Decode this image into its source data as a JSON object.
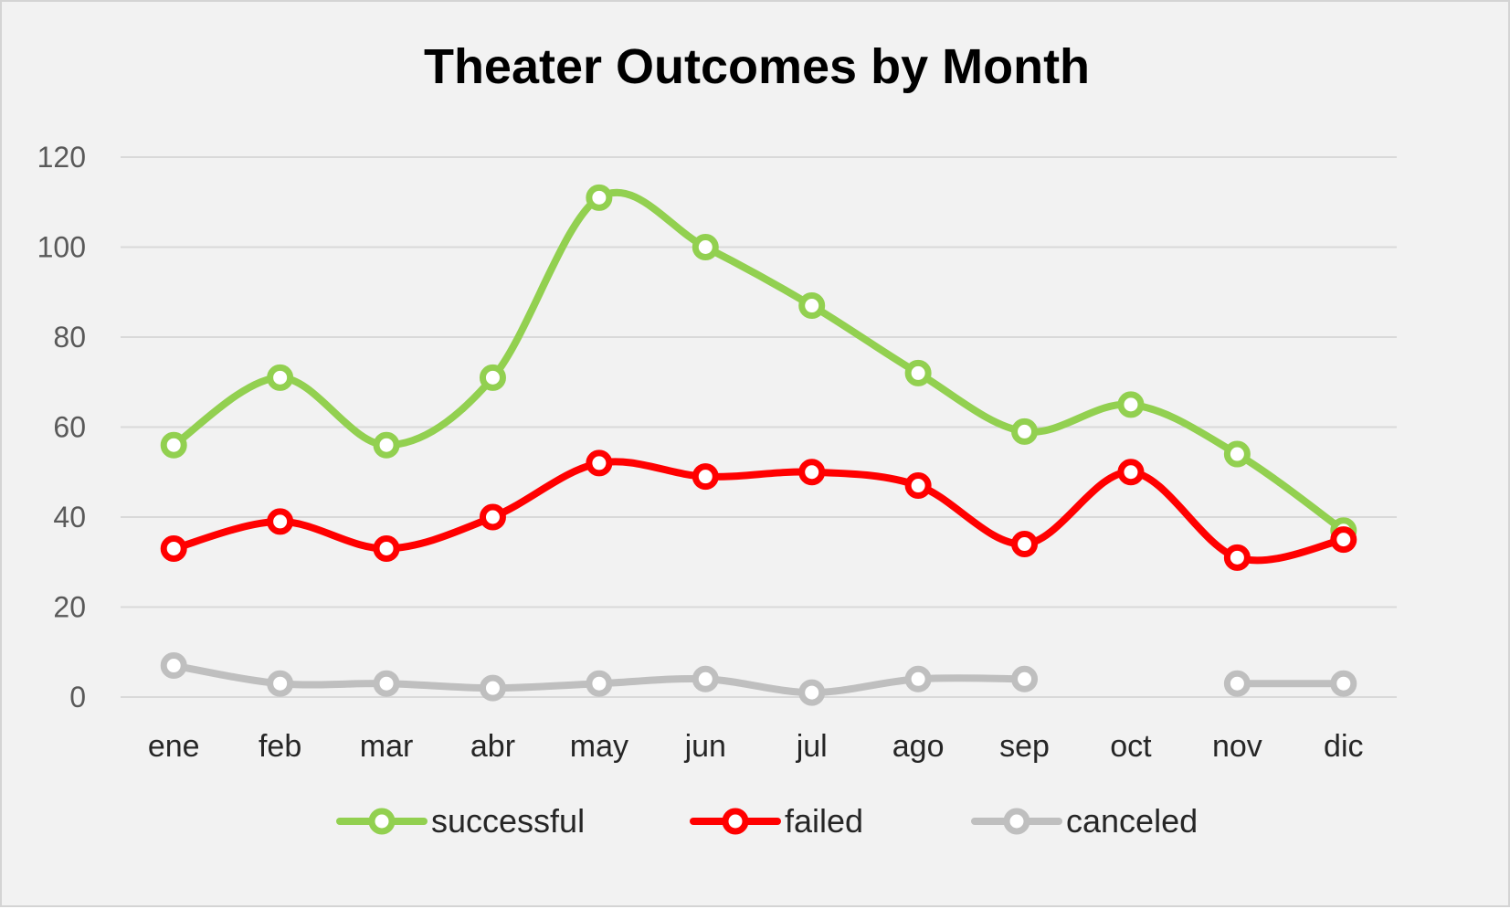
{
  "chart_data": {
    "type": "line",
    "title": "Theater Outcomes by Month",
    "xlabel": "",
    "ylabel": "",
    "categories": [
      "ene",
      "feb",
      "mar",
      "abr",
      "may",
      "jun",
      "jul",
      "ago",
      "sep",
      "oct",
      "nov",
      "dic"
    ],
    "ylim": [
      0,
      120
    ],
    "yticks": [
      0,
      20,
      40,
      60,
      80,
      100,
      120
    ],
    "grid": true,
    "legend": "bottom",
    "smooth": true,
    "series": [
      {
        "name": "successful",
        "color": "#92d050",
        "values": [
          56,
          71,
          56,
          71,
          111,
          100,
          87,
          72,
          59,
          65,
          54,
          37
        ]
      },
      {
        "name": "failed",
        "color": "#ff0000",
        "values": [
          33,
          39,
          33,
          40,
          52,
          49,
          50,
          47,
          34,
          50,
          31,
          35
        ]
      },
      {
        "name": "canceled",
        "color": "#bfbfbf",
        "values": [
          7,
          3,
          3,
          2,
          3,
          4,
          1,
          4,
          4,
          null,
          3,
          3
        ]
      }
    ]
  }
}
